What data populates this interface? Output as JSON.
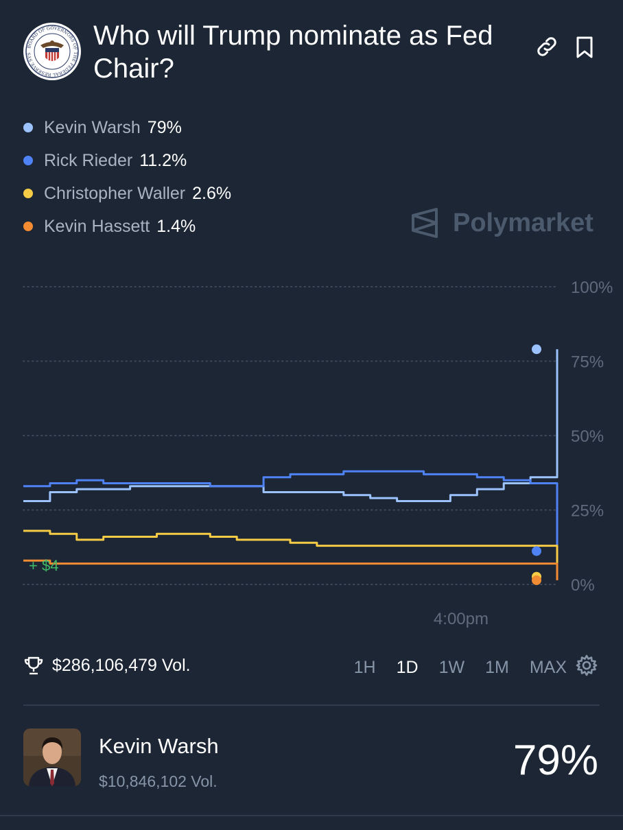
{
  "market": {
    "title": "Who will Trump nominate as Fed Chair?",
    "seal_text": "BOARD OF GOVERNORS OF THE FEDERAL RESERVE SYSTEM",
    "watermark": "Polymarket",
    "volume": "$286,106,479 Vol.",
    "pnl_label": "+ $4"
  },
  "icons": {
    "link": "link-icon",
    "bookmark": "bookmark-icon",
    "trophy": "trophy-icon",
    "settings": "gear-icon",
    "logo": "polymarket-logo-icon"
  },
  "legend": [
    {
      "name": "Kevin Warsh",
      "pct": "79%",
      "color": "#9cc3ff"
    },
    {
      "name": "Rick Rieder",
      "pct": "11.2%",
      "color": "#4f83f5"
    },
    {
      "name": "Christopher Waller",
      "pct": "2.6%",
      "color": "#f6cb45"
    },
    {
      "name": "Kevin Hassett",
      "pct": "1.4%",
      "color": "#f38b32"
    }
  ],
  "time_ranges": [
    {
      "label": "1H",
      "active": false
    },
    {
      "label": "1D",
      "active": true
    },
    {
      "label": "1W",
      "active": false
    },
    {
      "label": "1M",
      "active": false
    },
    {
      "label": "MAX",
      "active": false
    }
  ],
  "chart_data": {
    "type": "line",
    "title": "Who will Trump nominate as Fed Chair?",
    "x": [
      0,
      5,
      10,
      15,
      20,
      25,
      30,
      35,
      40,
      45,
      50,
      55,
      60,
      65,
      70,
      75,
      80,
      85,
      90,
      95,
      100
    ],
    "x_ticks": [
      {
        "x": 82,
        "label": "4:00pm"
      }
    ],
    "ylim": [
      0,
      100
    ],
    "y_ticks": [
      0,
      25,
      50,
      75,
      100
    ],
    "y_tick_labels": [
      "0%",
      "25%",
      "50%",
      "75%",
      "100%"
    ],
    "grid": true,
    "series": [
      {
        "name": "Kevin Warsh",
        "color": "#9cc3ff",
        "values": [
          28,
          31,
          32,
          32,
          33,
          33,
          33,
          33,
          33,
          31,
          31,
          31,
          30,
          29,
          28,
          28,
          30,
          32,
          34,
          36,
          79
        ]
      },
      {
        "name": "Rick Rieder",
        "color": "#4f83f5",
        "values": [
          33,
          34,
          35,
          34,
          34,
          34,
          34,
          33,
          33,
          36,
          37,
          37,
          38,
          38,
          38,
          37,
          37,
          36,
          35,
          34,
          11.2
        ]
      },
      {
        "name": "Christopher Waller",
        "color": "#f6cb45",
        "values": [
          18,
          17,
          15,
          16,
          16,
          17,
          17,
          16,
          15,
          15,
          14,
          13,
          13,
          13,
          13,
          13,
          13,
          13,
          13,
          13,
          2.6
        ]
      },
      {
        "name": "Kevin Hassett",
        "color": "#f38b32",
        "values": [
          8,
          7,
          7,
          7,
          7,
          7,
          7,
          7,
          7,
          7,
          7,
          7,
          7,
          7,
          7,
          7,
          7,
          7,
          7,
          7,
          1.4
        ]
      }
    ]
  },
  "candidate": {
    "name": "Kevin Warsh",
    "volume": "$10,846,102 Vol.",
    "pct": "79%"
  }
}
